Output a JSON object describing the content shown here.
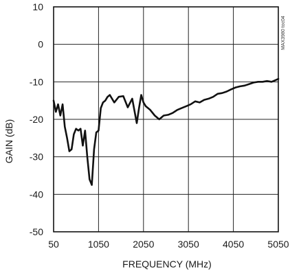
{
  "chart_data": {
    "type": "line",
    "title": "",
    "xlabel": "FREQUENCY (MHz)",
    "ylabel": "GAIN (dB)",
    "xlim": [
      50,
      5050
    ],
    "ylim": [
      -50,
      10
    ],
    "grid": true,
    "chart_code": "MAX3980 toc04",
    "x_tick_labels": [
      "50",
      "1050",
      "2050",
      "3050",
      "4050",
      "5050"
    ],
    "y_tick_labels": [
      "10",
      "0",
      "-10",
      "-20",
      "-30",
      "-40",
      "-50"
    ],
    "series": [
      {
        "x": [
          50,
          100,
          150,
          200,
          250,
          300,
          350,
          400,
          450,
          500,
          550,
          600,
          650,
          700,
          750,
          800,
          850,
          900,
          950,
          1000,
          1050,
          1100,
          1150,
          1200,
          1250,
          1300,
          1400,
          1500,
          1600,
          1700,
          1800,
          1900,
          1950,
          2000,
          2050,
          2100,
          2200,
          2300,
          2400,
          2500,
          2600,
          2700,
          2800,
          2900,
          3000,
          3100,
          3200,
          3300,
          3400,
          3500,
          3600,
          3700,
          3800,
          3900,
          4000,
          4100,
          4200,
          4300,
          4400,
          4500,
          4600,
          4700,
          4800,
          4900,
          5000,
          5050
        ],
        "y": [
          -15,
          -18,
          -16,
          -19,
          -16,
          -22,
          -25,
          -28.5,
          -28,
          -24,
          -22.5,
          -23,
          -22.5,
          -27,
          -23,
          -30,
          -36,
          -37.5,
          -28,
          -23.5,
          -23,
          -17,
          -15.5,
          -15,
          -14,
          -13.5,
          -15.5,
          -14,
          -13.8,
          -16.8,
          -14.5,
          -21,
          -17,
          -13.5,
          -15.5,
          -16.5,
          -17.5,
          -19,
          -20,
          -19,
          -18.8,
          -18.3,
          -17.5,
          -17,
          -16.5,
          -16,
          -15.2,
          -15.5,
          -14.8,
          -14.5,
          -14,
          -13.2,
          -13,
          -12.6,
          -12,
          -11.5,
          -11.2,
          -11,
          -10.6,
          -10.2,
          -10,
          -10,
          -9.8,
          -10,
          -9.5,
          -9.2
        ]
      }
    ]
  }
}
